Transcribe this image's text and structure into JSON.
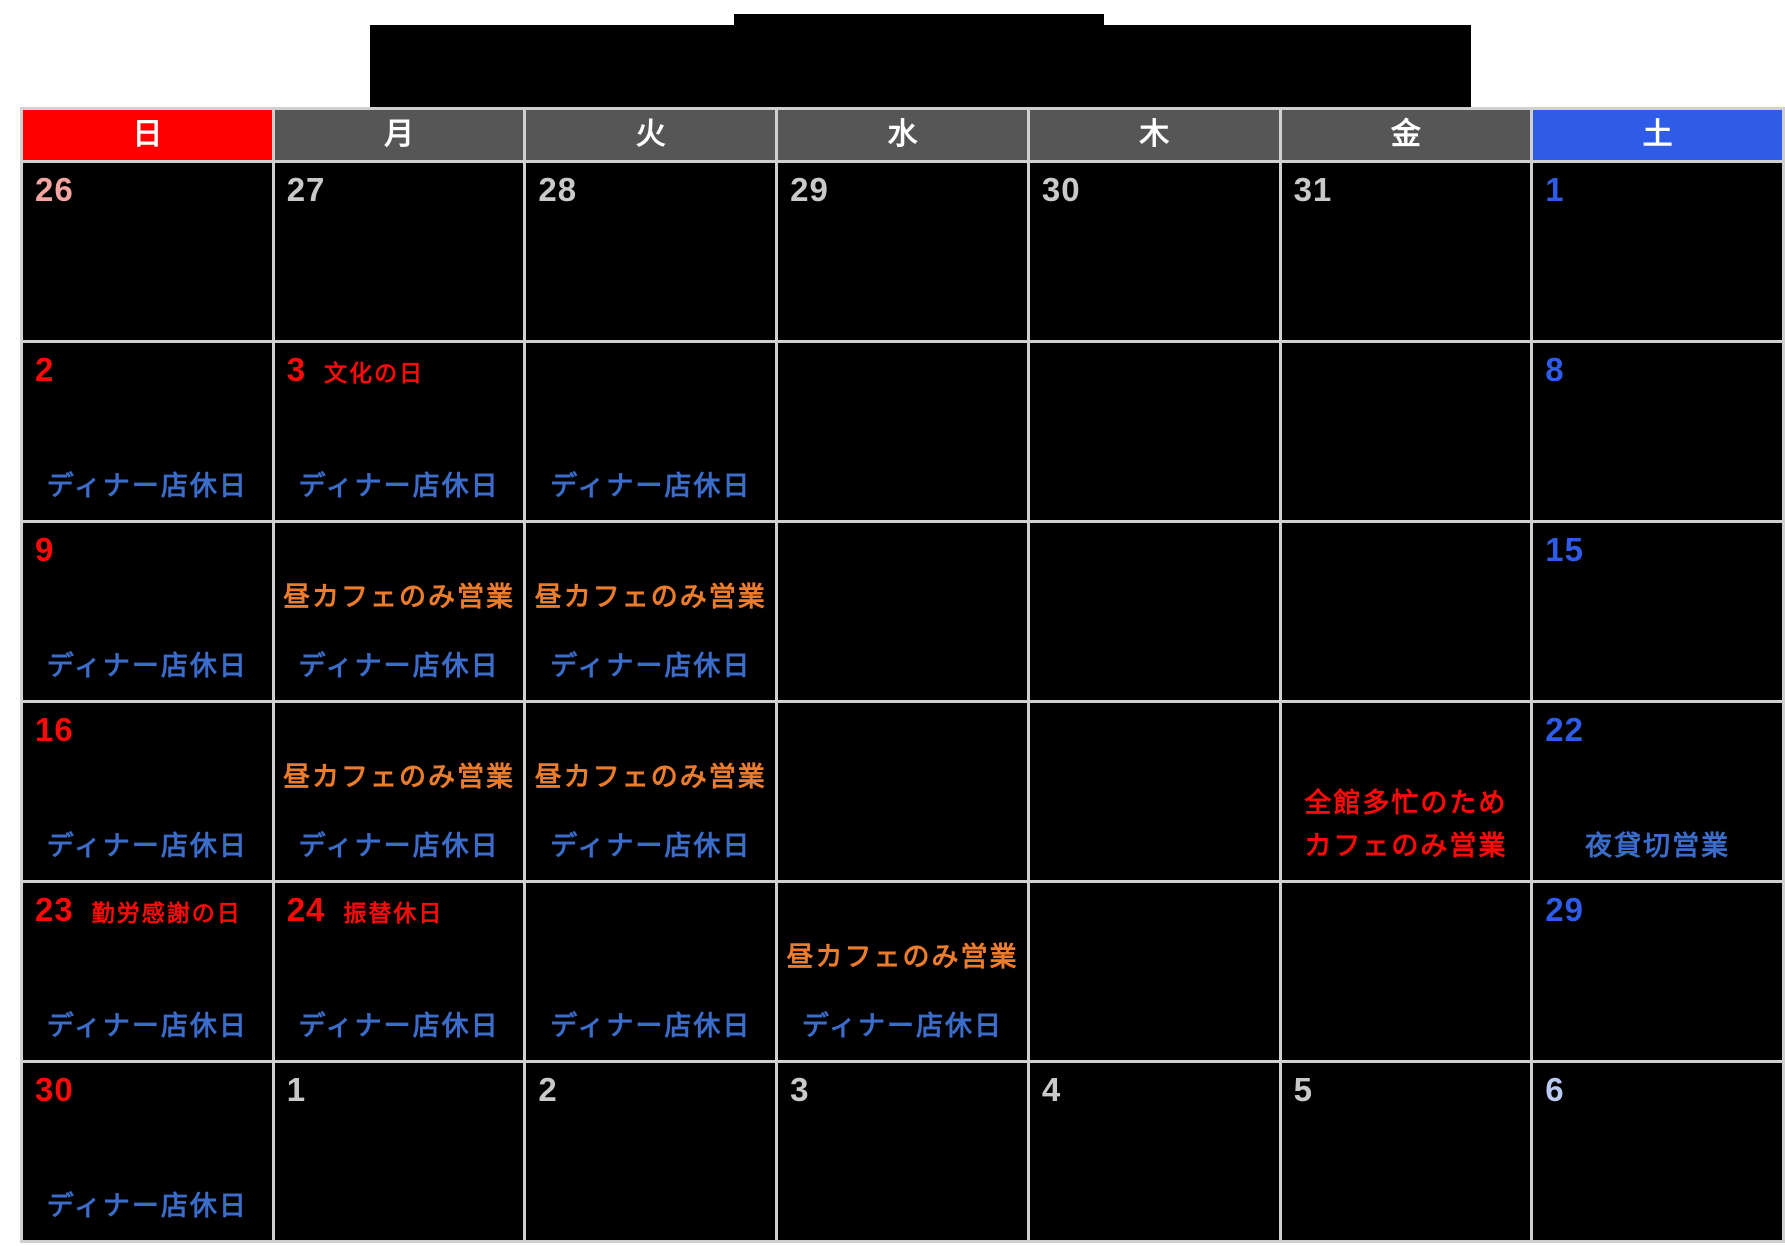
{
  "page": {
    "background": "#ffffff",
    "banner_color": "#000000"
  },
  "palette": {
    "cell_bg": "#000000",
    "grid_line": "#d0d0d0",
    "header_sunday_bg": "#ff0000",
    "header_weekday_bg": "#565656",
    "header_saturday_bg": "#2e5ce6",
    "header_text": "#ffffff",
    "date_red": "#fb0a0a",
    "date_blue": "#2e5ce8",
    "date_gray": "#c9c9c9",
    "date_pink": "#f4a5a1",
    "date_paleblue": "#b9c9ef",
    "note_orange": "#eb7c2b",
    "note_blue": "#3b6cc9",
    "note_red": "#fb0a0a"
  },
  "calendar": {
    "weekdays": [
      {
        "label": "日",
        "bg_key": "header_sunday_bg"
      },
      {
        "label": "月",
        "bg_key": "header_weekday_bg"
      },
      {
        "label": "火",
        "bg_key": "header_weekday_bg"
      },
      {
        "label": "水",
        "bg_key": "header_weekday_bg"
      },
      {
        "label": "木",
        "bg_key": "header_weekday_bg"
      },
      {
        "label": "金",
        "bg_key": "header_weekday_bg"
      },
      {
        "label": "土",
        "bg_key": "header_saturday_bg"
      }
    ],
    "weeks": [
      [
        {
          "date": "26",
          "date_color": "date_pink"
        },
        {
          "date": "27",
          "date_color": "date_gray"
        },
        {
          "date": "28",
          "date_color": "date_gray"
        },
        {
          "date": "29",
          "date_color": "date_gray"
        },
        {
          "date": "30",
          "date_color": "date_gray"
        },
        {
          "date": "31",
          "date_color": "date_gray"
        },
        {
          "date": "1",
          "date_color": "date_blue"
        }
      ],
      [
        {
          "date": "2",
          "date_color": "date_red",
          "notes": [
            {
              "text": "ディナー店休日",
              "color": "note_blue",
              "slot": "bottom"
            }
          ]
        },
        {
          "date": "3",
          "date_color": "date_red",
          "holiday": "文化の日",
          "notes": [
            {
              "text": "ディナー店休日",
              "color": "note_blue",
              "slot": "bottom"
            }
          ]
        },
        {
          "notes": [
            {
              "text": "ディナー店休日",
              "color": "note_blue",
              "slot": "bottom"
            }
          ]
        },
        {},
        {},
        {},
        {
          "date": "8",
          "date_color": "date_blue"
        }
      ],
      [
        {
          "date": "9",
          "date_color": "date_red",
          "notes": [
            {
              "text": "ディナー店休日",
              "color": "note_blue",
              "slot": "bottom"
            }
          ]
        },
        {
          "notes": [
            {
              "text": "昼カフェのみ営業",
              "color": "note_orange",
              "slot": "mid"
            },
            {
              "text": "ディナー店休日",
              "color": "note_blue",
              "slot": "bottom"
            }
          ]
        },
        {
          "notes": [
            {
              "text": "昼カフェのみ営業",
              "color": "note_orange",
              "slot": "mid"
            },
            {
              "text": "ディナー店休日",
              "color": "note_blue",
              "slot": "bottom"
            }
          ]
        },
        {},
        {},
        {},
        {
          "date": "15",
          "date_color": "date_blue"
        }
      ],
      [
        {
          "date": "16",
          "date_color": "date_red",
          "notes": [
            {
              "text": "ディナー店休日",
              "color": "note_blue",
              "slot": "bottom"
            }
          ]
        },
        {
          "notes": [
            {
              "text": "昼カフェのみ営業",
              "color": "note_orange",
              "slot": "mid"
            },
            {
              "text": "ディナー店休日",
              "color": "note_blue",
              "slot": "bottom"
            }
          ]
        },
        {
          "notes": [
            {
              "text": "昼カフェのみ営業",
              "color": "note_orange",
              "slot": "mid"
            },
            {
              "text": "ディナー店休日",
              "color": "note_blue",
              "slot": "bottom"
            }
          ]
        },
        {},
        {},
        {
          "notes": [
            {
              "text": "全館多忙のため",
              "color": "note_red",
              "slot": "midlow"
            },
            {
              "text": "カフェのみ営業",
              "color": "note_red",
              "slot": "bottom"
            }
          ]
        },
        {
          "date": "22",
          "date_color": "date_blue",
          "notes": [
            {
              "text": "夜貸切営業",
              "color": "note_blue",
              "slot": "bottom"
            }
          ]
        }
      ],
      [
        {
          "date": "23",
          "date_color": "date_red",
          "holiday": "勤労感謝の日",
          "notes": [
            {
              "text": "ディナー店休日",
              "color": "note_blue",
              "slot": "bottom"
            }
          ]
        },
        {
          "date": "24",
          "date_color": "date_red",
          "holiday": "振替休日",
          "notes": [
            {
              "text": "ディナー店休日",
              "color": "note_blue",
              "slot": "bottom"
            }
          ]
        },
        {
          "notes": [
            {
              "text": "ディナー店休日",
              "color": "note_blue",
              "slot": "bottom"
            }
          ]
        },
        {
          "notes": [
            {
              "text": "昼カフェのみ営業",
              "color": "note_orange",
              "slot": "mid"
            },
            {
              "text": "ディナー店休日",
              "color": "note_blue",
              "slot": "bottom"
            }
          ]
        },
        {},
        {},
        {
          "date": "29",
          "date_color": "date_blue"
        }
      ],
      [
        {
          "date": "30",
          "date_color": "date_red",
          "notes": [
            {
              "text": "ディナー店休日",
              "color": "note_blue",
              "slot": "bottom"
            }
          ]
        },
        {
          "date": "1",
          "date_color": "date_gray"
        },
        {
          "date": "2",
          "date_color": "date_gray"
        },
        {
          "date": "3",
          "date_color": "date_gray"
        },
        {
          "date": "4",
          "date_color": "date_gray"
        },
        {
          "date": "5",
          "date_color": "date_gray"
        },
        {
          "date": "6",
          "date_color": "date_paleblue"
        }
      ]
    ]
  }
}
